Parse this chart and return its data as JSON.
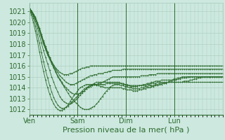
{
  "background_color": "#cce8df",
  "plot_bg_color": "#cce8df",
  "grid_color": "#aaccbb",
  "line_color": "#2d6b2d",
  "xlabel": "Pression niveau de la mer( hPa )",
  "xlabel_fontsize": 8,
  "tick_fontsize": 7,
  "ylim": [
    1011.5,
    1021.8
  ],
  "yticks": [
    1012,
    1013,
    1014,
    1015,
    1016,
    1017,
    1018,
    1019,
    1020,
    1021
  ],
  "day_labels": [
    "Ven",
    "Sam",
    "Dim",
    "Lun"
  ],
  "day_positions": [
    0,
    48,
    96,
    144
  ],
  "total_hours": 192,
  "series": [
    [
      1021.3,
      1021.0,
      1020.7,
      1020.3,
      1019.8,
      1019.2,
      1018.6,
      1018.0,
      1017.5,
      1017.0,
      1016.6,
      1016.2,
      1015.8,
      1015.4,
      1015.0,
      1014.7,
      1014.4,
      1014.1,
      1013.8,
      1013.5,
      1013.2,
      1013.0,
      1012.8,
      1012.6,
      1012.4,
      1012.2,
      1012.1,
      1012.0,
      1012.0,
      1012.0,
      1012.1,
      1012.2,
      1012.3,
      1012.5,
      1012.7,
      1013.0,
      1013.2,
      1013.5,
      1013.7,
      1013.9,
      1014.1,
      1014.2,
      1014.3,
      1014.3,
      1014.3,
      1014.2,
      1014.2,
      1014.1,
      1014.1,
      1014.0,
      1014.0,
      1013.9,
      1013.9,
      1013.9,
      1013.9,
      1014.0,
      1014.0,
      1014.1,
      1014.1,
      1014.2,
      1014.2,
      1014.2,
      1014.3,
      1014.3,
      1014.4,
      1014.4,
      1014.4,
      1014.4,
      1014.5,
      1014.5,
      1014.5,
      1014.5,
      1014.5,
      1014.5,
      1014.5,
      1014.5,
      1014.6,
      1014.6,
      1014.6,
      1014.7,
      1014.7,
      1014.8,
      1014.8,
      1014.9,
      1014.9,
      1015.0,
      1015.0,
      1015.0,
      1015.0,
      1015.0,
      1015.0,
      1015.0,
      1015.0,
      1015.0,
      1015.0,
      1015.0
    ],
    [
      1021.3,
      1021.1,
      1020.8,
      1020.4,
      1019.9,
      1019.3,
      1018.7,
      1018.1,
      1017.6,
      1017.1,
      1016.7,
      1016.3,
      1015.9,
      1015.5,
      1015.1,
      1014.8,
      1014.5,
      1014.2,
      1014.0,
      1013.8,
      1013.6,
      1013.5,
      1013.4,
      1013.4,
      1013.4,
      1013.5,
      1013.6,
      1013.7,
      1013.9,
      1014.0,
      1014.1,
      1014.2,
      1014.3,
      1014.3,
      1014.4,
      1014.4,
      1014.5,
      1014.6,
      1014.7,
      1014.8,
      1014.9,
      1015.0,
      1015.0,
      1015.0,
      1015.0,
      1015.0,
      1015.0,
      1015.0,
      1015.0,
      1015.0,
      1015.0,
      1015.0,
      1015.0,
      1015.0,
      1015.0,
      1015.1,
      1015.1,
      1015.1,
      1015.1,
      1015.2,
      1015.2,
      1015.2,
      1015.2,
      1015.3,
      1015.3,
      1015.3,
      1015.3,
      1015.3,
      1015.3,
      1015.3,
      1015.3,
      1015.3,
      1015.3,
      1015.3,
      1015.3,
      1015.3,
      1015.3,
      1015.3,
      1015.3,
      1015.3,
      1015.3,
      1015.3,
      1015.3,
      1015.3,
      1015.3,
      1015.3,
      1015.3,
      1015.3,
      1015.3,
      1015.3,
      1015.3,
      1015.3,
      1015.3,
      1015.3,
      1015.3,
      1015.3
    ],
    [
      1021.3,
      1021.1,
      1020.8,
      1020.4,
      1019.9,
      1019.4,
      1018.8,
      1018.2,
      1017.7,
      1017.2,
      1016.8,
      1016.4,
      1016.0,
      1015.7,
      1015.4,
      1015.1,
      1014.9,
      1014.7,
      1014.5,
      1014.4,
      1014.3,
      1014.3,
      1014.3,
      1014.4,
      1014.5,
      1014.6,
      1014.7,
      1014.8,
      1014.9,
      1015.0,
      1015.1,
      1015.1,
      1015.2,
      1015.2,
      1015.3,
      1015.3,
      1015.3,
      1015.4,
      1015.4,
      1015.5,
      1015.5,
      1015.6,
      1015.6,
      1015.6,
      1015.6,
      1015.6,
      1015.7,
      1015.7,
      1015.7,
      1015.7,
      1015.7,
      1015.7,
      1015.7,
      1015.7,
      1015.7,
      1015.7,
      1015.7,
      1015.7,
      1015.7,
      1015.7,
      1015.7,
      1015.7,
      1015.7,
      1015.7,
      1015.7,
      1015.7,
      1015.7,
      1015.7,
      1015.7,
      1015.7,
      1015.7,
      1015.7,
      1015.7,
      1015.7,
      1015.7,
      1015.7,
      1015.7,
      1015.7,
      1015.7,
      1015.7,
      1015.7,
      1015.7,
      1015.7,
      1015.7,
      1015.7,
      1015.7,
      1015.7,
      1015.7,
      1015.7,
      1015.7,
      1015.7,
      1015.7,
      1015.7,
      1015.7,
      1015.7,
      1015.7
    ],
    [
      1021.3,
      1021.1,
      1020.8,
      1020.5,
      1020.0,
      1019.5,
      1018.9,
      1018.3,
      1017.8,
      1017.3,
      1016.8,
      1016.4,
      1016.1,
      1015.8,
      1015.6,
      1015.4,
      1015.3,
      1015.2,
      1015.2,
      1015.2,
      1015.3,
      1015.3,
      1015.4,
      1015.5,
      1015.6,
      1015.7,
      1015.8,
      1015.8,
      1015.9,
      1015.9,
      1016.0,
      1016.0,
      1016.0,
      1016.0,
      1016.0,
      1016.0,
      1016.0,
      1016.0,
      1016.0,
      1016.0,
      1016.0,
      1016.0,
      1016.0,
      1016.0,
      1016.0,
      1016.0,
      1016.0,
      1016.0,
      1016.0,
      1016.0,
      1016.0,
      1016.0,
      1016.0,
      1016.0,
      1016.0,
      1016.0,
      1016.0,
      1016.0,
      1016.0,
      1016.0,
      1016.0,
      1016.0,
      1016.0,
      1016.0,
      1016.0,
      1016.0,
      1016.0,
      1016.0,
      1016.0,
      1016.0,
      1016.0,
      1016.0,
      1016.0,
      1016.0,
      1016.0,
      1016.0,
      1016.0,
      1016.0,
      1016.0,
      1016.0,
      1016.0,
      1016.0,
      1016.0,
      1016.0,
      1016.0,
      1016.0,
      1016.0,
      1016.0,
      1016.0,
      1016.0,
      1016.0,
      1016.0,
      1016.0,
      1016.0,
      1016.0,
      1016.0
    ],
    [
      1021.3,
      1021.0,
      1020.6,
      1020.1,
      1019.5,
      1018.8,
      1018.1,
      1017.4,
      1016.8,
      1016.2,
      1015.6,
      1015.0,
      1014.5,
      1014.0,
      1013.6,
      1013.2,
      1012.9,
      1012.7,
      1012.6,
      1012.5,
      1012.5,
      1012.6,
      1012.7,
      1012.9,
      1013.1,
      1013.3,
      1013.5,
      1013.7,
      1013.9,
      1014.1,
      1014.2,
      1014.3,
      1014.4,
      1014.5,
      1014.5,
      1014.5,
      1014.5,
      1014.5,
      1014.5,
      1014.5,
      1014.5,
      1014.5,
      1014.5,
      1014.5,
      1014.5,
      1014.4,
      1014.4,
      1014.3,
      1014.3,
      1014.2,
      1014.2,
      1014.2,
      1014.2,
      1014.2,
      1014.2,
      1014.2,
      1014.2,
      1014.2,
      1014.3,
      1014.3,
      1014.4,
      1014.4,
      1014.4,
      1014.5,
      1014.5,
      1014.5,
      1014.5,
      1014.5,
      1014.5,
      1014.6,
      1014.6,
      1014.7,
      1014.7,
      1014.8,
      1014.8,
      1014.9,
      1014.9,
      1014.9,
      1015.0,
      1015.0,
      1015.0,
      1015.0,
      1015.0,
      1015.0,
      1015.0,
      1015.0,
      1015.0,
      1015.0,
      1015.0,
      1015.0,
      1015.0,
      1015.0,
      1015.0,
      1015.0,
      1015.0,
      1015.0
    ],
    [
      1021.3,
      1020.9,
      1020.4,
      1019.7,
      1018.9,
      1018.1,
      1017.2,
      1016.4,
      1015.6,
      1014.9,
      1014.2,
      1013.6,
      1013.1,
      1012.7,
      1012.4,
      1012.2,
      1012.1,
      1012.1,
      1012.2,
      1012.3,
      1012.5,
      1012.7,
      1012.9,
      1013.1,
      1013.3,
      1013.5,
      1013.7,
      1013.9,
      1014.0,
      1014.1,
      1014.2,
      1014.2,
      1014.3,
      1014.3,
      1014.3,
      1014.3,
      1014.3,
      1014.3,
      1014.4,
      1014.4,
      1014.4,
      1014.4,
      1014.4,
      1014.4,
      1014.4,
      1014.4,
      1014.3,
      1014.3,
      1014.2,
      1014.2,
      1014.1,
      1014.1,
      1014.1,
      1014.1,
      1014.2,
      1014.2,
      1014.3,
      1014.3,
      1014.4,
      1014.4,
      1014.5,
      1014.5,
      1014.6,
      1014.6,
      1014.6,
      1014.7,
      1014.7,
      1014.7,
      1014.7,
      1014.7,
      1014.7,
      1014.8,
      1014.8,
      1014.9,
      1014.9,
      1015.0,
      1015.0,
      1015.0,
      1015.0,
      1015.0,
      1015.0,
      1015.0,
      1015.0,
      1015.0,
      1015.0,
      1015.0,
      1015.0,
      1015.0,
      1015.0,
      1015.0,
      1015.0,
      1015.0,
      1015.0,
      1015.0,
      1015.0,
      1015.0
    ],
    [
      1021.3,
      1020.7,
      1020.0,
      1019.2,
      1018.3,
      1017.3,
      1016.4,
      1015.5,
      1014.7,
      1014.0,
      1013.4,
      1012.9,
      1012.5,
      1012.2,
      1012.0,
      1011.9,
      1011.9,
      1012.0,
      1012.2,
      1012.4,
      1012.7,
      1013.0,
      1013.3,
      1013.5,
      1013.8,
      1014.0,
      1014.1,
      1014.2,
      1014.3,
      1014.3,
      1014.3,
      1014.3,
      1014.3,
      1014.2,
      1014.2,
      1014.1,
      1014.1,
      1014.0,
      1014.0,
      1014.0,
      1014.0,
      1014.0,
      1014.0,
      1014.0,
      1014.0,
      1014.0,
      1013.9,
      1013.9,
      1013.8,
      1013.8,
      1013.8,
      1013.7,
      1013.7,
      1013.7,
      1013.8,
      1013.8,
      1013.9,
      1013.9,
      1014.0,
      1014.0,
      1014.1,
      1014.1,
      1014.2,
      1014.2,
      1014.3,
      1014.3,
      1014.4,
      1014.4,
      1014.5,
      1014.5,
      1014.5,
      1014.5,
      1014.5,
      1014.5,
      1014.5,
      1014.5,
      1014.5,
      1014.5,
      1014.5,
      1014.5,
      1014.5,
      1014.5,
      1014.5,
      1014.5,
      1014.5,
      1014.5,
      1014.5,
      1014.5,
      1014.5,
      1014.5,
      1014.5,
      1014.5,
      1014.5,
      1014.5,
      1014.5,
      1014.5
    ]
  ]
}
